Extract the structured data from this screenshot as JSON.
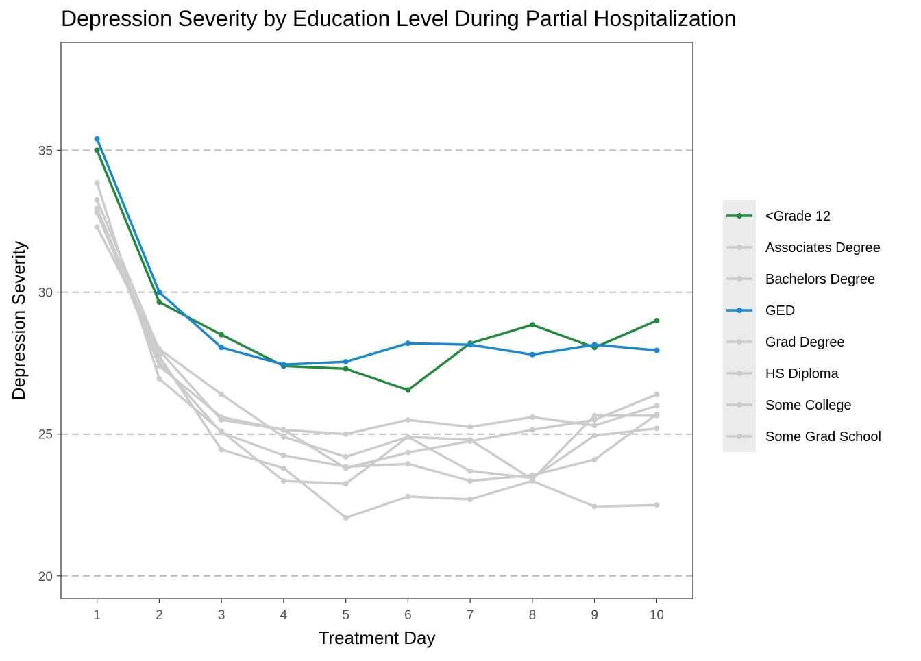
{
  "chart_data": {
    "type": "line",
    "title": "Depression Severity by Education Level During Partial Hospitalization",
    "xlabel": "Treatment Day",
    "ylabel": "Depression Severity",
    "x": [
      1,
      2,
      3,
      4,
      5,
      6,
      7,
      8,
      9,
      10
    ],
    "xlim": [
      0.42,
      10.58
    ],
    "ylim": [
      19.2,
      38.8
    ],
    "yticks": [
      20,
      25,
      30,
      35
    ],
    "grid": "horizontal dashed",
    "legend_position": "right",
    "series": [
      {
        "name": "<Grade 12",
        "color": "#228B3B",
        "highlight": true,
        "values": [
          35.0,
          29.65,
          28.5,
          27.4,
          27.3,
          26.55,
          28.2,
          28.85,
          28.05,
          29.0
        ]
      },
      {
        "name": "Associates Degree",
        "color": "#CCCCCC",
        "highlight": false,
        "values": [
          33.25,
          27.95,
          25.5,
          25.15,
          25.0,
          25.5,
          25.25,
          25.6,
          25.3,
          26.0
        ]
      },
      {
        "name": "Bachelors Degree",
        "color": "#CCCCCC",
        "highlight": false,
        "values": [
          32.3,
          28.0,
          26.4,
          24.9,
          24.2,
          24.9,
          23.7,
          23.45,
          24.95,
          25.2
        ]
      },
      {
        "name": "GED",
        "color": "#1A87D4",
        "highlight": true,
        "values": [
          35.4,
          30.0,
          28.05,
          27.45,
          27.55,
          28.2,
          28.15,
          27.8,
          28.15,
          27.95
        ]
      },
      {
        "name": "Grad Degree",
        "color": "#CCCCCC",
        "highlight": false,
        "values": [
          32.8,
          27.55,
          25.05,
          24.25,
          23.85,
          23.95,
          23.35,
          23.55,
          24.1,
          25.7
        ]
      },
      {
        "name": "HS Diploma",
        "color": "#CCCCCC",
        "highlight": false,
        "values": [
          33.85,
          26.95,
          25.1,
          23.35,
          23.25,
          24.9,
          24.8,
          23.4,
          25.65,
          25.65
        ]
      },
      {
        "name": "Some College",
        "color": "#CCCCCC",
        "highlight": false,
        "values": [
          32.95,
          27.75,
          24.45,
          23.8,
          22.05,
          22.8,
          22.7,
          23.35,
          22.45,
          22.5
        ]
      },
      {
        "name": "Some Grad School",
        "color": "#CCCCCC",
        "highlight": false,
        "values": [
          32.85,
          27.4,
          25.6,
          25.15,
          23.8,
          24.35,
          24.75,
          25.15,
          25.5,
          26.4
        ]
      }
    ]
  }
}
